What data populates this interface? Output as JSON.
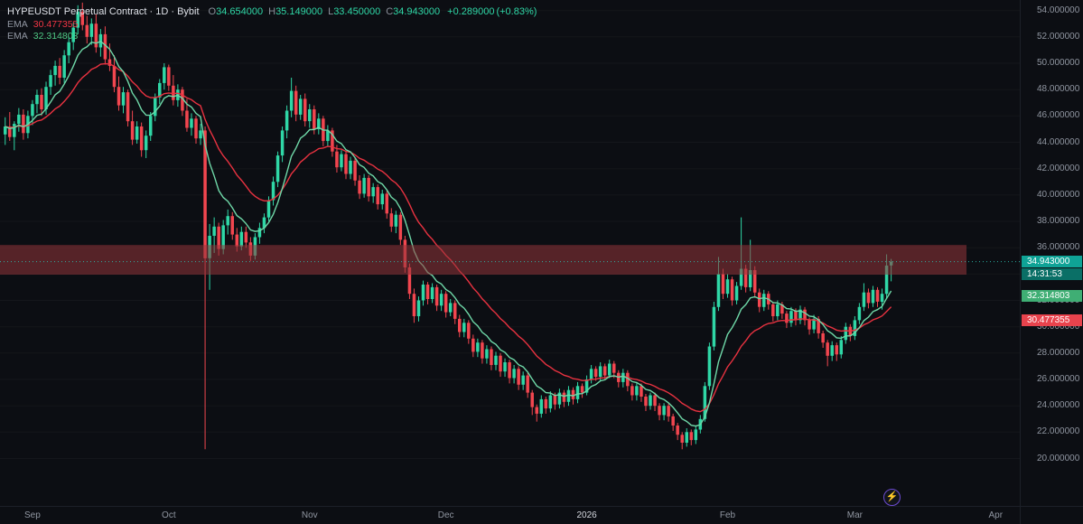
{
  "legend": {
    "title": "HYPEUSDT Perpetual Contract · 1D · Bybit",
    "ohlc": {
      "o_label": "O",
      "o": "34.654000",
      "h_label": "H",
      "h": "35.149000",
      "l_label": "L",
      "l": "33.450000",
      "c_label": "C",
      "c": "34.943000",
      "change": "+0.289000",
      "change_pct": "(+0.83%)"
    },
    "ema_red": {
      "label": "EMA",
      "value": "30.477355"
    },
    "ema_green": {
      "label": "EMA",
      "value": "32.314803"
    }
  },
  "price_axis": {
    "price_badge": {
      "value": "34.943000",
      "countdown": "14:31:53"
    },
    "ema_badges": {
      "green": "32.314803",
      "red": "30.477355"
    }
  },
  "misc": {
    "lightning_glyph": "⚡"
  },
  "chart_data": {
    "type": "candlestick",
    "title": "HYPEUSDT Perpetual Contract 1D Bybit",
    "ylim": [
      16.4,
      54.8
    ],
    "colors": {
      "up": "#2fd7a6",
      "down": "#f2464f",
      "bg": "#0c0e13"
    },
    "y_ticks": [
      {
        "price": 54,
        "label": "54.000000"
      },
      {
        "price": 52,
        "label": "52.000000"
      },
      {
        "price": 50,
        "label": "50.000000"
      },
      {
        "price": 48,
        "label": "48.000000"
      },
      {
        "price": 46,
        "label": "46.000000"
      },
      {
        "price": 44,
        "label": "44.000000"
      },
      {
        "price": 42,
        "label": "42.000000"
      },
      {
        "price": 40,
        "label": "40.000000"
      },
      {
        "price": 38,
        "label": "38.000000"
      },
      {
        "price": 36,
        "label": "36.000000"
      },
      {
        "price": 34,
        "label": "34.000000"
      },
      {
        "price": 32,
        "label": "32.000000"
      },
      {
        "price": 30,
        "label": "30.000000"
      },
      {
        "price": 28,
        "label": "28.000000"
      },
      {
        "price": 26,
        "label": "26.000000"
      },
      {
        "price": 24,
        "label": "24.000000"
      },
      {
        "price": 22,
        "label": "22.000000"
      },
      {
        "price": 20,
        "label": "20.000000"
      }
    ],
    "x_ticks": [
      {
        "idx": 6,
        "label": "Sep"
      },
      {
        "idx": 36,
        "label": "Oct"
      },
      {
        "idx": 67,
        "label": "Nov"
      },
      {
        "idx": 97,
        "label": "Dec"
      },
      {
        "idx": 128,
        "label": "2026",
        "major": true
      },
      {
        "idx": 159,
        "label": "Feb"
      },
      {
        "idx": 187,
        "label": "Mar"
      },
      {
        "idx": 218,
        "label": "Apr"
      }
    ],
    "overlays": {
      "emas": [
        {
          "period": 21,
          "color": "#e83240",
          "last_value": 30.477355
        },
        {
          "period": 9,
          "color": "#6fd8a8",
          "last_value": 32.314803
        }
      ],
      "zone": {
        "top": 36.2,
        "bottom": 33.95,
        "x_end": 1070,
        "color": "#93353b",
        "opacity": 0.55
      },
      "last_price": 34.943,
      "price_line_color": "#2cbfae",
      "countdown": "14:31:53"
    },
    "candles": [
      [
        44.6,
        45.9,
        43.8,
        45.2
      ],
      [
        45.2,
        46.3,
        44.1,
        44.4
      ],
      [
        44.4,
        45.6,
        43.4,
        45.4
      ],
      [
        45.4,
        46.6,
        44.8,
        46.1
      ],
      [
        46.1,
        46.5,
        44.2,
        44.7
      ],
      [
        44.7,
        46.4,
        44.3,
        46.0
      ],
      [
        46.0,
        47.2,
        45.3,
        46.9
      ],
      [
        46.9,
        48.0,
        46.2,
        47.6
      ],
      [
        47.6,
        48.1,
        46.0,
        46.5
      ],
      [
        46.5,
        48.6,
        46.1,
        48.2
      ],
      [
        48.2,
        49.5,
        47.6,
        49.1
      ],
      [
        49.1,
        50.2,
        48.3,
        49.8
      ],
      [
        49.8,
        50.4,
        48.4,
        48.9
      ],
      [
        48.9,
        51.0,
        48.5,
        50.6
      ],
      [
        50.6,
        52.0,
        50.0,
        51.6
      ],
      [
        51.6,
        53.1,
        51.0,
        52.7
      ],
      [
        52.7,
        54.4,
        52.2,
        53.9
      ],
      [
        53.9,
        54.6,
        52.5,
        52.9
      ],
      [
        52.9,
        53.6,
        51.5,
        52.0
      ],
      [
        52.0,
        53.4,
        51.4,
        53.0
      ],
      [
        53.0,
        53.7,
        50.8,
        51.2
      ],
      [
        51.2,
        52.6,
        50.5,
        52.2
      ],
      [
        52.2,
        52.8,
        49.9,
        50.3
      ],
      [
        50.3,
        51.5,
        49.4,
        49.8
      ],
      [
        49.8,
        50.6,
        47.8,
        48.2
      ],
      [
        48.2,
        49.0,
        46.4,
        46.8
      ],
      [
        46.8,
        48.2,
        46.2,
        47.8
      ],
      [
        47.8,
        48.0,
        45.2,
        45.6
      ],
      [
        45.6,
        46.4,
        43.8,
        44.2
      ],
      [
        44.2,
        45.6,
        43.9,
        45.2
      ],
      [
        45.2,
        45.5,
        42.9,
        43.4
      ],
      [
        43.4,
        44.9,
        42.8,
        44.5
      ],
      [
        44.5,
        46.3,
        44.1,
        46.0
      ],
      [
        46.0,
        47.7,
        45.6,
        47.4
      ],
      [
        47.4,
        48.8,
        46.9,
        48.5
      ],
      [
        48.5,
        50.0,
        48.0,
        49.7
      ],
      [
        49.7,
        49.9,
        47.9,
        48.3
      ],
      [
        48.3,
        49.1,
        46.8,
        47.2
      ],
      [
        47.2,
        48.4,
        46.7,
        48.0
      ],
      [
        48.0,
        48.2,
        46.0,
        46.4
      ],
      [
        46.4,
        47.3,
        44.8,
        45.1
      ],
      [
        45.1,
        46.2,
        44.5,
        45.8
      ],
      [
        45.8,
        46.0,
        43.9,
        44.3
      ],
      [
        44.3,
        45.4,
        43.8,
        44.9
      ],
      [
        44.9,
        45.2,
        20.7,
        35.2
      ],
      [
        35.2,
        37.8,
        32.8,
        36.9
      ],
      [
        36.9,
        38.3,
        35.6,
        37.6
      ],
      [
        37.6,
        37.9,
        35.4,
        35.9
      ],
      [
        35.9,
        38.1,
        35.5,
        37.7
      ],
      [
        37.7,
        38.9,
        37.0,
        38.4
      ],
      [
        38.4,
        38.7,
        36.6,
        37.0
      ],
      [
        37.0,
        37.5,
        35.7,
        36.1
      ],
      [
        36.1,
        37.6,
        35.8,
        37.2
      ],
      [
        37.2,
        37.6,
        36.0,
        36.4
      ],
      [
        36.4,
        36.8,
        35.0,
        35.4
      ],
      [
        35.4,
        37.1,
        35.1,
        36.8
      ],
      [
        36.8,
        37.9,
        36.3,
        37.5
      ],
      [
        37.5,
        38.6,
        37.1,
        38.3
      ],
      [
        38.3,
        39.9,
        38.0,
        39.6
      ],
      [
        39.6,
        41.4,
        39.2,
        41.0
      ],
      [
        41.0,
        43.3,
        40.6,
        43.0
      ],
      [
        43.0,
        45.2,
        42.5,
        44.9
      ],
      [
        44.9,
        46.8,
        44.3,
        46.4
      ],
      [
        46.4,
        48.9,
        45.9,
        47.9
      ],
      [
        47.9,
        48.3,
        45.6,
        46.1
      ],
      [
        46.1,
        47.6,
        45.7,
        47.3
      ],
      [
        47.3,
        47.7,
        45.2,
        45.6
      ],
      [
        45.6,
        46.9,
        45.1,
        46.5
      ],
      [
        46.5,
        46.8,
        44.6,
        45.0
      ],
      [
        45.0,
        46.2,
        44.6,
        45.8
      ],
      [
        45.8,
        46.0,
        43.7,
        44.1
      ],
      [
        44.1,
        45.3,
        43.7,
        44.9
      ],
      [
        44.9,
        45.1,
        42.9,
        43.3
      ],
      [
        43.3,
        43.8,
        41.7,
        42.1
      ],
      [
        42.1,
        43.4,
        41.8,
        43.1
      ],
      [
        43.1,
        43.3,
        41.2,
        41.6
      ],
      [
        41.6,
        42.9,
        41.2,
        42.6
      ],
      [
        42.6,
        42.8,
        40.7,
        41.1
      ],
      [
        41.1,
        41.5,
        39.7,
        40.1
      ],
      [
        40.1,
        41.6,
        39.8,
        41.3
      ],
      [
        41.3,
        41.5,
        39.5,
        39.9
      ],
      [
        39.9,
        40.9,
        39.4,
        40.6
      ],
      [
        40.6,
        40.8,
        38.9,
        39.3
      ],
      [
        39.3,
        40.4,
        38.9,
        40.1
      ],
      [
        40.1,
        40.3,
        38.2,
        38.6
      ],
      [
        38.6,
        39.0,
        37.2,
        37.6
      ],
      [
        37.6,
        38.8,
        37.1,
        38.5
      ],
      [
        38.5,
        38.7,
        36.2,
        36.6
      ],
      [
        36.6,
        36.9,
        34.1,
        34.5
      ],
      [
        34.5,
        34.8,
        32.1,
        32.5
      ],
      [
        32.5,
        32.9,
        30.3,
        30.8
      ],
      [
        30.8,
        32.3,
        30.4,
        32.0
      ],
      [
        32.0,
        33.5,
        31.6,
        33.2
      ],
      [
        33.2,
        33.4,
        31.7,
        32.1
      ],
      [
        32.1,
        33.3,
        31.8,
        33.0
      ],
      [
        33.0,
        33.2,
        31.2,
        31.6
      ],
      [
        31.6,
        32.8,
        31.2,
        32.5
      ],
      [
        32.5,
        32.7,
        30.7,
        31.1
      ],
      [
        31.1,
        32.1,
        30.8,
        31.8
      ],
      [
        31.8,
        32.0,
        30.2,
        30.6
      ],
      [
        30.6,
        30.9,
        29.2,
        29.6
      ],
      [
        29.6,
        30.6,
        29.2,
        30.3
      ],
      [
        30.3,
        30.5,
        28.7,
        29.1
      ],
      [
        29.1,
        29.4,
        27.7,
        28.1
      ],
      [
        28.1,
        29.1,
        27.7,
        28.8
      ],
      [
        28.8,
        29.0,
        27.2,
        27.6
      ],
      [
        27.6,
        28.6,
        27.2,
        28.3
      ],
      [
        28.3,
        28.5,
        26.7,
        27.1
      ],
      [
        27.1,
        28.1,
        26.7,
        27.8
      ],
      [
        27.8,
        28.0,
        26.2,
        26.6
      ],
      [
        26.6,
        27.6,
        26.2,
        27.3
      ],
      [
        27.3,
        27.5,
        25.7,
        26.1
      ],
      [
        26.1,
        27.1,
        25.7,
        26.8
      ],
      [
        26.8,
        27.0,
        25.2,
        25.6
      ],
      [
        25.6,
        26.6,
        25.2,
        26.3
      ],
      [
        26.3,
        26.5,
        24.6,
        25.0
      ],
      [
        25.0,
        25.2,
        23.3,
        23.9
      ],
      [
        23.9,
        24.1,
        22.8,
        23.4
      ],
      [
        23.4,
        24.8,
        23.1,
        24.5
      ],
      [
        24.5,
        24.7,
        23.4,
        23.8
      ],
      [
        23.8,
        25.1,
        23.5,
        24.8
      ],
      [
        24.8,
        25.0,
        23.7,
        24.1
      ],
      [
        24.1,
        25.3,
        23.8,
        25.0
      ],
      [
        25.0,
        25.2,
        23.9,
        24.3
      ],
      [
        24.3,
        25.5,
        24.0,
        25.2
      ],
      [
        25.2,
        25.4,
        24.1,
        24.5
      ],
      [
        24.5,
        25.8,
        24.2,
        25.5
      ],
      [
        25.5,
        25.7,
        24.6,
        25.0
      ],
      [
        25.0,
        26.3,
        24.8,
        26.0
      ],
      [
        26.0,
        27.1,
        25.7,
        26.8
      ],
      [
        26.8,
        27.0,
        25.9,
        26.2
      ],
      [
        26.2,
        27.3,
        25.9,
        27.0
      ],
      [
        27.0,
        27.2,
        26.0,
        26.3
      ],
      [
        26.3,
        27.5,
        26.1,
        27.2
      ],
      [
        27.2,
        27.4,
        26.1,
        26.5
      ],
      [
        26.5,
        26.7,
        25.4,
        25.8
      ],
      [
        25.8,
        26.8,
        25.4,
        26.5
      ],
      [
        26.5,
        26.7,
        25.1,
        25.5
      ],
      [
        25.5,
        25.7,
        24.4,
        24.8
      ],
      [
        24.8,
        25.8,
        24.4,
        25.5
      ],
      [
        25.5,
        25.7,
        24.3,
        24.7
      ],
      [
        24.7,
        24.9,
        23.6,
        24.0
      ],
      [
        24.0,
        25.0,
        23.7,
        24.8
      ],
      [
        24.8,
        25.0,
        23.6,
        24.0
      ],
      [
        24.0,
        24.2,
        22.9,
        23.3
      ],
      [
        23.3,
        24.2,
        22.9,
        24.0
      ],
      [
        24.0,
        24.2,
        22.8,
        23.2
      ],
      [
        23.2,
        23.4,
        22.1,
        22.5
      ],
      [
        22.5,
        22.7,
        21.4,
        21.8
      ],
      [
        21.8,
        22.0,
        20.7,
        21.2
      ],
      [
        21.2,
        22.3,
        20.9,
        22.0
      ],
      [
        22.0,
        22.2,
        21.0,
        21.4
      ],
      [
        21.4,
        22.5,
        21.1,
        22.2
      ],
      [
        22.2,
        23.3,
        21.9,
        23.0
      ],
      [
        23.0,
        25.8,
        22.8,
        25.5
      ],
      [
        25.5,
        28.8,
        25.2,
        28.5
      ],
      [
        28.5,
        31.9,
        28.2,
        31.5
      ],
      [
        31.5,
        35.3,
        31.2,
        34.0
      ],
      [
        34.0,
        34.4,
        32.1,
        32.5
      ],
      [
        32.5,
        34.0,
        32.2,
        33.6
      ],
      [
        33.6,
        33.8,
        31.6,
        32.0
      ],
      [
        32.0,
        33.4,
        31.7,
        33.1
      ],
      [
        33.1,
        38.3,
        32.8,
        34.4
      ],
      [
        34.4,
        34.7,
        32.6,
        33.0
      ],
      [
        33.0,
        36.6,
        32.7,
        34.3
      ],
      [
        34.3,
        34.6,
        32.2,
        32.6
      ],
      [
        32.6,
        32.9,
        31.1,
        31.5
      ],
      [
        31.5,
        32.8,
        31.2,
        32.5
      ],
      [
        32.5,
        32.7,
        31.3,
        31.7
      ],
      [
        31.7,
        31.9,
        30.4,
        30.8
      ],
      [
        30.8,
        32.0,
        30.5,
        31.7
      ],
      [
        31.7,
        31.9,
        30.6,
        31.0
      ],
      [
        31.0,
        31.2,
        29.9,
        30.3
      ],
      [
        30.3,
        31.5,
        30.0,
        31.2
      ],
      [
        31.2,
        31.4,
        30.1,
        30.5
      ],
      [
        30.5,
        31.6,
        30.2,
        31.3
      ],
      [
        31.3,
        31.5,
        30.1,
        30.5
      ],
      [
        30.5,
        30.7,
        29.4,
        29.8
      ],
      [
        29.8,
        30.9,
        29.5,
        30.6
      ],
      [
        30.6,
        30.8,
        29.1,
        29.5
      ],
      [
        29.5,
        29.7,
        28.4,
        28.8
      ],
      [
        28.8,
        29.0,
        27.0,
        27.8
      ],
      [
        27.8,
        28.9,
        27.4,
        28.6
      ],
      [
        28.6,
        28.8,
        27.4,
        27.9
      ],
      [
        27.9,
        29.3,
        27.6,
        29.0
      ],
      [
        29.0,
        30.3,
        28.7,
        30.0
      ],
      [
        30.0,
        30.2,
        28.9,
        29.3
      ],
      [
        29.3,
        30.8,
        29.0,
        30.5
      ],
      [
        30.5,
        31.8,
        30.2,
        31.5
      ],
      [
        31.5,
        33.3,
        31.2,
        32.6
      ],
      [
        32.6,
        32.9,
        31.4,
        31.8
      ],
      [
        31.8,
        33.1,
        31.5,
        32.8
      ],
      [
        32.8,
        33.0,
        31.5,
        31.9
      ],
      [
        31.9,
        32.9,
        31.3,
        32.5
      ],
      [
        32.5,
        35.5,
        32.1,
        34.65
      ],
      [
        34.654,
        35.149,
        33.45,
        34.943
      ]
    ]
  }
}
